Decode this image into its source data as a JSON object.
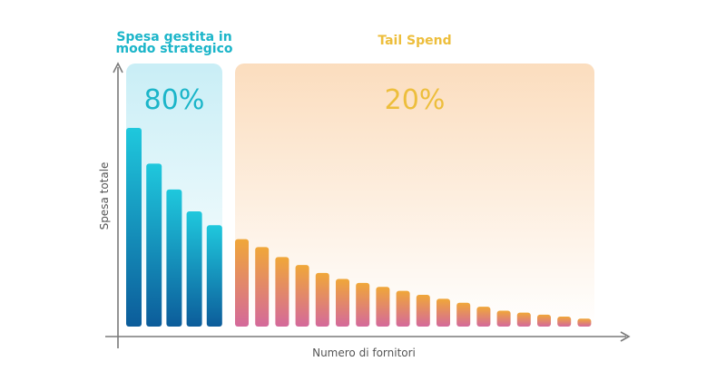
{
  "chart_data": {
    "type": "bar",
    "title": "",
    "xlabel": "Numero di fornitori",
    "ylabel": "Spesa totale",
    "ylim": [
      0,
      100
    ],
    "grid": false,
    "legend": "none",
    "groups": [
      {
        "label": "Spesa gestita in modo strategico",
        "label_lines": [
          "Spesa gestita in",
          "modo strategico"
        ],
        "percent_label": "80%",
        "color": "#1BB5C9",
        "bar_gradient": [
          "#1FC8DD",
          "#0C5C9A"
        ],
        "panel_gradient": [
          "#C9EEF6",
          "#FFFFFF"
        ],
        "values": [
          100,
          82,
          69,
          58,
          51
        ]
      },
      {
        "label": "Tail Spend",
        "label_lines": [
          "Tail Spend"
        ],
        "percent_label": "20%",
        "color": "#EDBE3C",
        "bar_gradient": [
          "#F0A739",
          "#D4699B"
        ],
        "panel_gradient": [
          "#FBDDBE",
          "#FFFFFF"
        ],
        "values": [
          44,
          40,
          35,
          31,
          27,
          24,
          22,
          20,
          18,
          16,
          14,
          12,
          10,
          8,
          7,
          6,
          5,
          4
        ]
      }
    ]
  }
}
